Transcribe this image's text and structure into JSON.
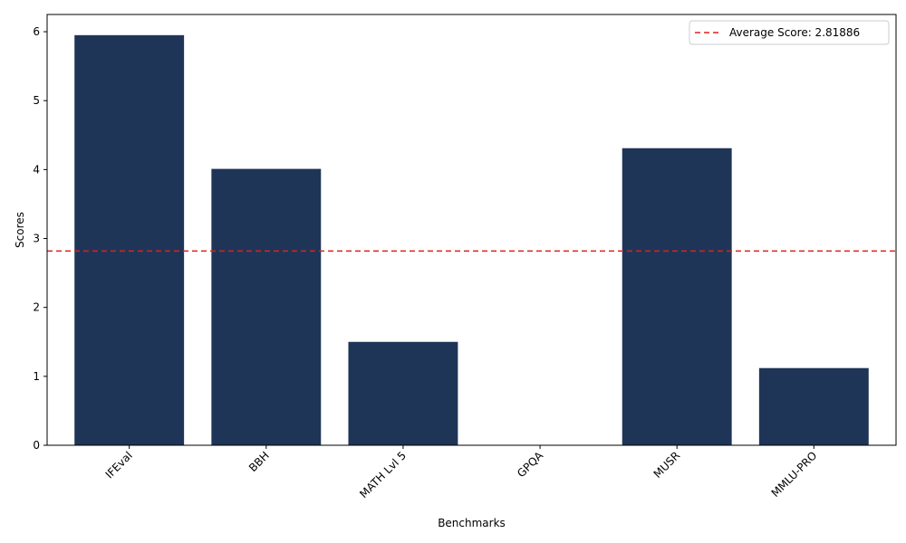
{
  "chart_data": {
    "type": "bar",
    "categories": [
      "IFEval",
      "BBH",
      "MATH Lvl 5",
      "GPQA",
      "MUSR",
      "MMLU-PRO"
    ],
    "values": [
      5.95,
      4.01,
      1.5,
      0.0,
      4.31,
      1.12
    ],
    "xlabel": "Benchmarks",
    "ylabel": "Scores",
    "ylim": [
      0,
      6.25
    ],
    "yticks": [
      0,
      1,
      2,
      3,
      4,
      5,
      6
    ],
    "grid": false,
    "bar_color": "#1f3557",
    "average_line": {
      "value": 2.81886,
      "label": "Average Score: 2.81886",
      "color": "#e0201b",
      "style": "dashed"
    },
    "legend_position": "top-right"
  }
}
